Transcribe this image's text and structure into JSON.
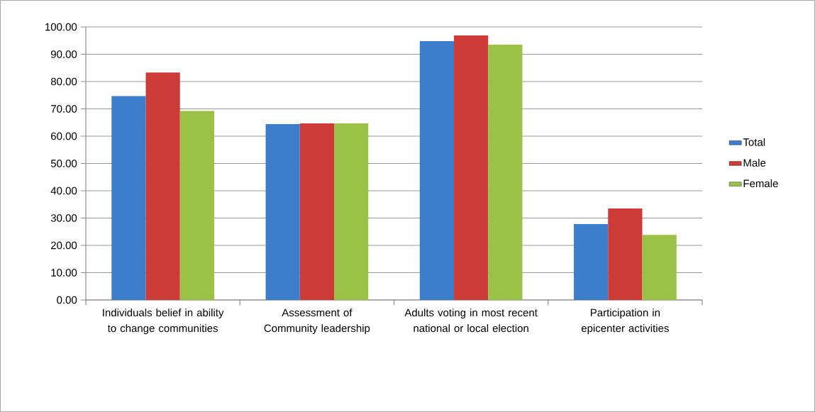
{
  "chart_data": {
    "type": "bar",
    "categories": [
      "Individuals belief in ability to change communities",
      "Assessment of Community leadership",
      "Adults voting in most recent national or local election",
      "Participation in epicenter activities"
    ],
    "series": [
      {
        "name": "Total",
        "color": "#3c7dcc",
        "values": [
          74.7,
          64.4,
          94.8,
          27.8
        ]
      },
      {
        "name": "Male",
        "color": "#cc3b37",
        "values": [
          83.3,
          64.7,
          96.9,
          33.5
        ]
      },
      {
        "name": "Female",
        "color": "#9bc146",
        "values": [
          69.2,
          64.7,
          93.5,
          23.8
        ]
      }
    ],
    "ylim": [
      0,
      100
    ],
    "yticks": [
      {
        "value": 0,
        "label": "0.00"
      },
      {
        "value": 10,
        "label": "10.00"
      },
      {
        "value": 20,
        "label": "20.00"
      },
      {
        "value": 30,
        "label": "30.00"
      },
      {
        "value": 40,
        "label": "40.00"
      },
      {
        "value": 50,
        "label": "50.00"
      },
      {
        "value": 60,
        "label": "60.00"
      },
      {
        "value": 70,
        "label": "70.00"
      },
      {
        "value": 80,
        "label": "80.00"
      },
      {
        "value": 90,
        "label": "90.00"
      },
      {
        "value": 100,
        "label": "100.00"
      }
    ],
    "grid": "y",
    "legend": "right"
  }
}
